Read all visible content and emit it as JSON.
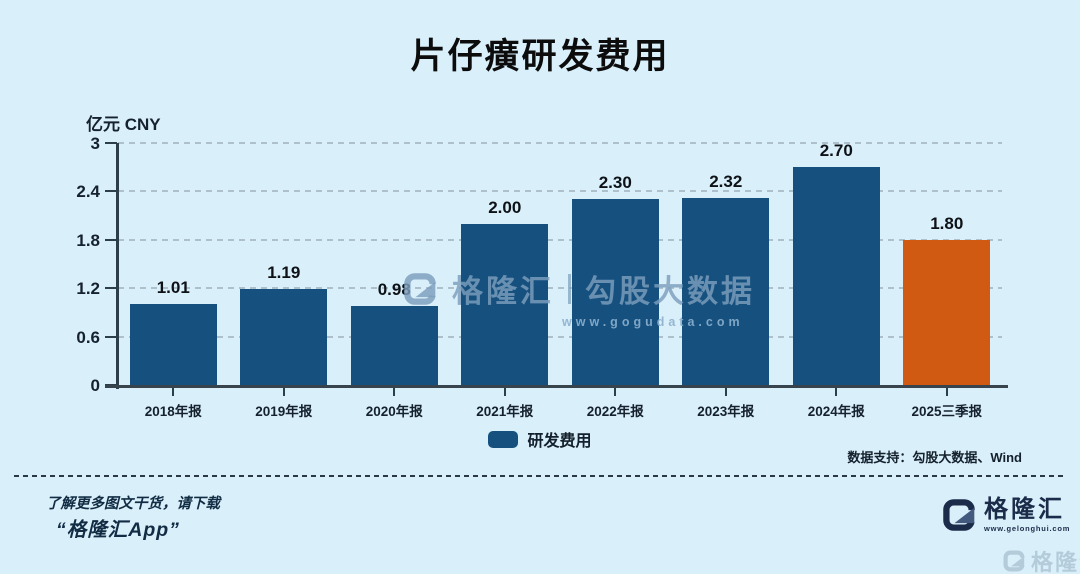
{
  "title": "片仔癀研发费用",
  "y_axis_unit": "亿元 CNY",
  "chart_data": {
    "type": "bar",
    "title": "片仔癀研发费用",
    "ylabel": "亿元 CNY",
    "categories": [
      "2018年报",
      "2019年报",
      "2020年报",
      "2021年报",
      "2022年报",
      "2023年报",
      "2024年报",
      "2025三季报"
    ],
    "values": [
      1.01,
      1.19,
      0.98,
      2.0,
      2.3,
      2.32,
      2.7,
      1.8
    ],
    "value_labels": [
      "1.01",
      "1.19",
      "0.98",
      "2.00",
      "2.30",
      "2.32",
      "2.70",
      "1.80"
    ],
    "series_name": "研发费用",
    "ylim": [
      0,
      3
    ],
    "yticks": [
      0,
      0.6,
      1.2,
      1.8,
      2.4,
      3
    ],
    "ytick_labels": [
      "0",
      "0.6",
      "1.2",
      "1.8",
      "2.4",
      "3"
    ],
    "grid": "horizontal-dashed",
    "legend_position": "bottom-center",
    "bar_color": "#15507e",
    "highlight_color": "#d05a12",
    "highlight_index": 7
  },
  "legend": {
    "label": "研发费用",
    "swatch_color": "#15507e"
  },
  "watermark": {
    "brand": "格隆汇",
    "partner": "勾股大数据",
    "url": "www.gogudata.com"
  },
  "footer": {
    "data_support": "数据支持：勾股大数据、Wind",
    "promo_line1": "了解更多图文干货，请下载",
    "promo_line2": "“格隆汇App”",
    "logo_brand": "格隆汇",
    "logo_url": "www.gelonghui.com",
    "corner_watermark": "格隆汇"
  },
  "colors": {
    "background": "#d9effa",
    "bar_blue": "#15507e",
    "bar_orange": "#d05a12",
    "axis": "#2c3e4a",
    "logo_navy": "#1b2b4a"
  }
}
